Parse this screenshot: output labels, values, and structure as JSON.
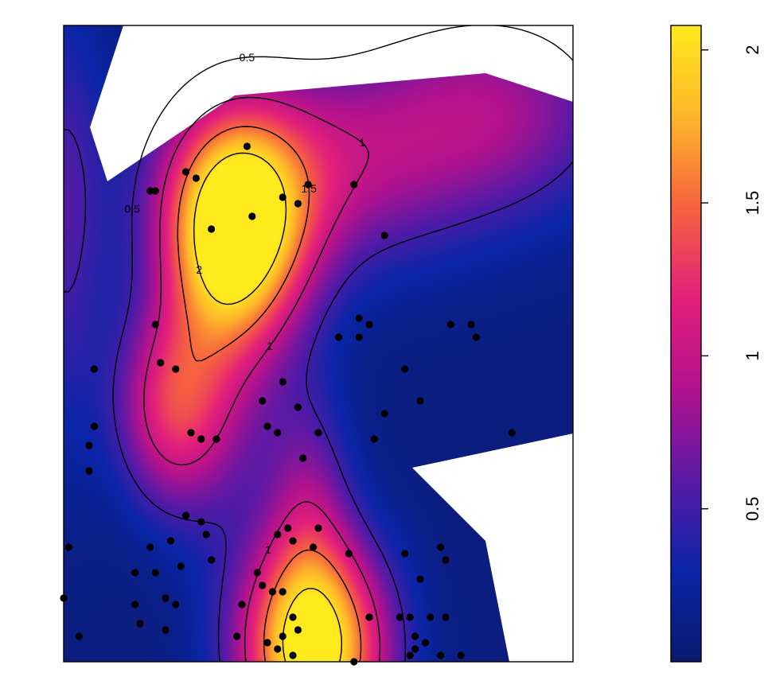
{
  "chart_data": {
    "type": "heatmap",
    "title": "",
    "xlabel": "",
    "ylabel": "",
    "colorbar": {
      "range": [
        0.0,
        2.08
      ],
      "ticks": [
        0.5,
        1,
        1.5,
        2
      ],
      "tick_labels": [
        "0.5",
        "1",
        "1.5",
        "2"
      ],
      "colors": [
        "#0b1a6e",
        "#0a25a8",
        "#5a1aa6",
        "#b3128e",
        "#e3207a",
        "#f7623e",
        "#fdb62a",
        "#ffea1e"
      ]
    },
    "field": {
      "base": 0.08,
      "peaks": [
        {
          "x": 0.34,
          "y": 0.68,
          "amp": 1.95,
          "sx": 0.1,
          "sy": 0.12
        },
        {
          "x": 0.49,
          "y": 0.02,
          "amp": 2.15,
          "sx": 0.1,
          "sy": 0.12
        },
        {
          "x": 0.21,
          "y": 0.4,
          "amp": 1.05,
          "sx": 0.075,
          "sy": 0.11
        },
        {
          "x": 0.5,
          "y": 0.78,
          "amp": 0.75,
          "sx": 0.2,
          "sy": 0.12
        },
        {
          "x": 0.85,
          "y": 0.87,
          "amp": 0.7,
          "sx": 0.18,
          "sy": 0.12
        },
        {
          "x": 0.32,
          "y": 0.5,
          "amp": 0.55,
          "sx": 0.08,
          "sy": 0.2
        },
        {
          "x": 0.48,
          "y": 0.25,
          "amp": 0.55,
          "sx": 0.06,
          "sy": 0.14
        },
        {
          "x": 0.0,
          "y": 0.7,
          "amp": 0.45,
          "sx": 0.06,
          "sy": 0.25
        }
      ]
    },
    "contours": {
      "levels": [
        0.5,
        1,
        1.5,
        2
      ],
      "labels": [
        "0.5",
        "0.5",
        "0.5",
        "0.5",
        "1",
        "1",
        "1",
        "1.5",
        "1.5",
        "2"
      ]
    },
    "points": [
      [
        0.0,
        0.1
      ],
      [
        0.03,
        0.04
      ],
      [
        0.01,
        0.18
      ],
      [
        0.05,
        0.3
      ],
      [
        0.06,
        0.37
      ],
      [
        0.05,
        0.34
      ],
      [
        0.06,
        0.46
      ],
      [
        0.14,
        0.14
      ],
      [
        0.15,
        0.06
      ],
      [
        0.14,
        0.09
      ],
      [
        0.17,
        0.18
      ],
      [
        0.18,
        0.14
      ],
      [
        0.2,
        0.1
      ],
      [
        0.2,
        0.05
      ],
      [
        0.22,
        0.09
      ],
      [
        0.21,
        0.19
      ],
      [
        0.23,
        0.15
      ],
      [
        0.27,
        0.22
      ],
      [
        0.28,
        0.2
      ],
      [
        0.29,
        0.16
      ],
      [
        0.24,
        0.23
      ],
      [
        0.25,
        0.36
      ],
      [
        0.27,
        0.35
      ],
      [
        0.3,
        0.35
      ],
      [
        0.18,
        0.53
      ],
      [
        0.19,
        0.47
      ],
      [
        0.22,
        0.46
      ],
      [
        0.18,
        0.74
      ],
      [
        0.17,
        0.74
      ],
      [
        0.24,
        0.77
      ],
      [
        0.26,
        0.76
      ],
      [
        0.29,
        0.68
      ],
      [
        0.37,
        0.7
      ],
      [
        0.36,
        0.81
      ],
      [
        0.43,
        0.73
      ],
      [
        0.46,
        0.72
      ],
      [
        0.48,
        0.75
      ],
      [
        0.57,
        0.75
      ],
      [
        0.63,
        0.67
      ],
      [
        0.54,
        0.51
      ],
      [
        0.58,
        0.54
      ],
      [
        0.58,
        0.51
      ],
      [
        0.6,
        0.53
      ],
      [
        0.67,
        0.46
      ],
      [
        0.63,
        0.39
      ],
      [
        0.7,
        0.41
      ],
      [
        0.76,
        0.53
      ],
      [
        0.8,
        0.53
      ],
      [
        0.81,
        0.51
      ],
      [
        0.88,
        0.36
      ],
      [
        0.61,
        0.35
      ],
      [
        0.46,
        0.4
      ],
      [
        0.4,
        0.37
      ],
      [
        0.42,
        0.36
      ],
      [
        0.39,
        0.41
      ],
      [
        0.43,
        0.44
      ],
      [
        0.5,
        0.36
      ],
      [
        0.47,
        0.32
      ],
      [
        0.42,
        0.2
      ],
      [
        0.44,
        0.21
      ],
      [
        0.5,
        0.21
      ],
      [
        0.45,
        0.19
      ],
      [
        0.49,
        0.18
      ],
      [
        0.38,
        0.14
      ],
      [
        0.39,
        0.12
      ],
      [
        0.41,
        0.11
      ],
      [
        0.43,
        0.11
      ],
      [
        0.45,
        0.07
      ],
      [
        0.46,
        0.05
      ],
      [
        0.43,
        0.04
      ],
      [
        0.35,
        0.09
      ],
      [
        0.34,
        0.04
      ],
      [
        0.4,
        0.03
      ],
      [
        0.42,
        0.02
      ],
      [
        0.45,
        0.01
      ],
      [
        0.57,
        0.0
      ],
      [
        0.56,
        0.17
      ],
      [
        0.6,
        0.07
      ],
      [
        0.67,
        0.17
      ],
      [
        0.7,
        0.13
      ],
      [
        0.74,
        0.18
      ],
      [
        0.75,
        0.16
      ],
      [
        0.66,
        0.07
      ],
      [
        0.68,
        0.07
      ],
      [
        0.72,
        0.07
      ],
      [
        0.75,
        0.07
      ],
      [
        0.69,
        0.04
      ],
      [
        0.69,
        0.02
      ],
      [
        0.71,
        0.03
      ],
      [
        0.68,
        0.01
      ],
      [
        0.74,
        0.01
      ],
      [
        0.78,
        0.01
      ]
    ]
  }
}
